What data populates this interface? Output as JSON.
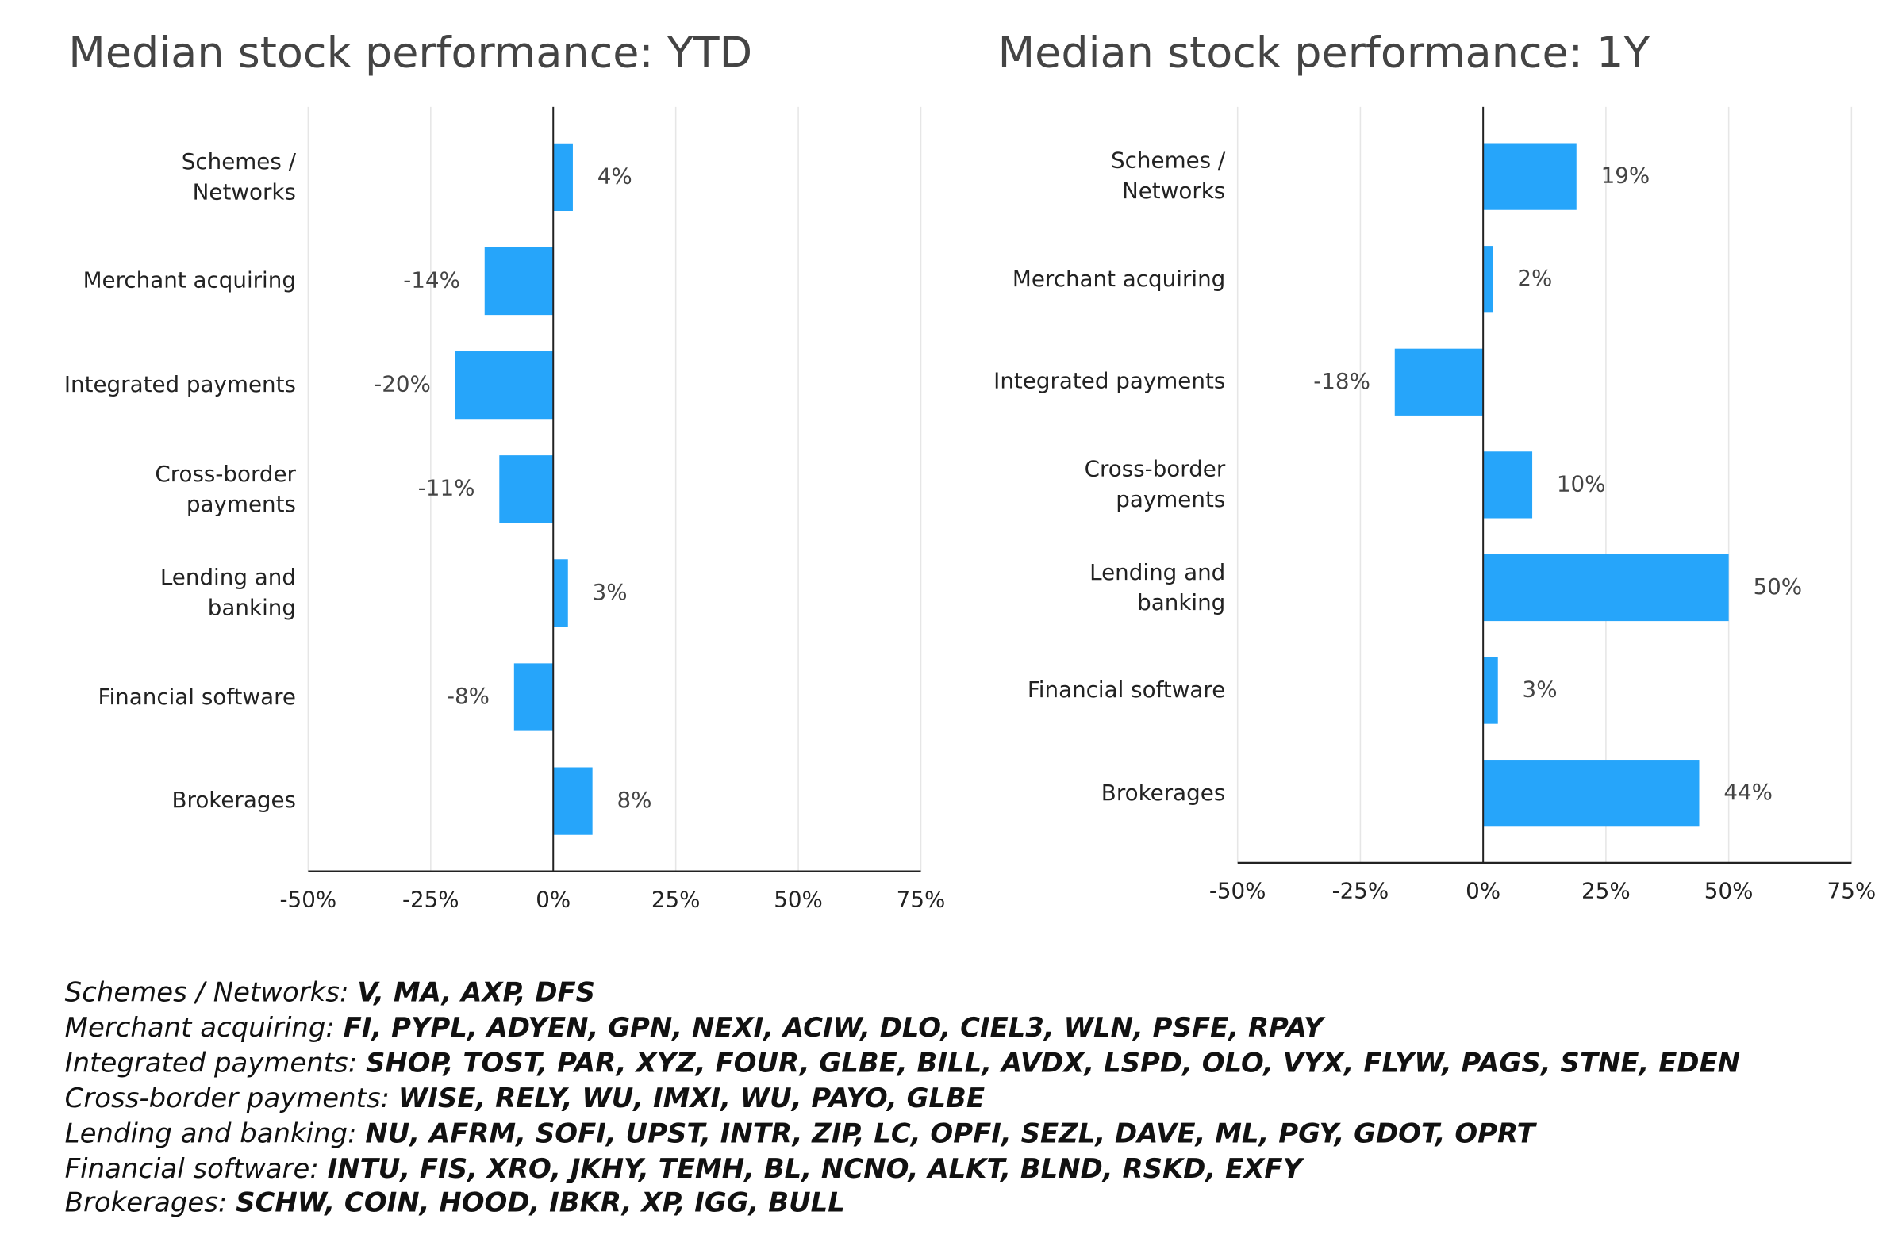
{
  "chart_data": [
    {
      "type": "bar",
      "orientation": "horizontal",
      "title": "Median stock performance: YTD",
      "categories": [
        "Schemes /\nNetworks",
        "Merchant acquiring",
        "Integrated payments",
        "Cross-border\npayments",
        "Lending and\nbanking",
        "Financial software",
        "Brokerages"
      ],
      "values": [
        4,
        -14,
        -20,
        -11,
        3,
        -8,
        8
      ],
      "value_labels": [
        "4%",
        "-14%",
        "-20%",
        "-11%",
        "3%",
        "-8%",
        "8%"
      ],
      "color": "#26a5fa",
      "xlim": [
        -50,
        75
      ],
      "xticks": [
        {
          "value": -50,
          "label": "-50%"
        },
        {
          "value": -25,
          "label": "-25%"
        },
        {
          "value": 0,
          "label": "0%"
        },
        {
          "value": 25,
          "label": "25%"
        },
        {
          "value": 50,
          "label": "50%"
        },
        {
          "value": 75,
          "label": "75%"
        }
      ],
      "grid": true
    },
    {
      "type": "bar",
      "orientation": "horizontal",
      "title": "Median stock performance: 1Y",
      "categories": [
        "Schemes /\nNetworks",
        "Merchant acquiring",
        "Integrated payments",
        "Cross-border\npayments",
        "Lending and\nbanking",
        "Financial software",
        "Brokerages"
      ],
      "values": [
        19,
        2,
        -18,
        10,
        50,
        3,
        44
      ],
      "value_labels": [
        "19%",
        "2%",
        "-18%",
        "10%",
        "50%",
        "3%",
        "44%"
      ],
      "color": "#26a5fa",
      "xlim": [
        -50,
        75
      ],
      "xticks": [
        {
          "value": -50,
          "label": "-50%"
        },
        {
          "value": -25,
          "label": "-25%"
        },
        {
          "value": 0,
          "label": "0%"
        },
        {
          "value": 25,
          "label": "25%"
        },
        {
          "value": 50,
          "label": "50%"
        },
        {
          "value": 75,
          "label": "75%"
        }
      ],
      "grid": true
    }
  ],
  "footnotes": [
    {
      "label": "Schemes / Networks:",
      "tickers": "V, MA, AXP, DFS"
    },
    {
      "label": "Merchant acquiring:",
      "tickers": "FI, PYPL, ADYEN, GPN, NEXI, ACIW, DLO, CIEL3, WLN, PSFE, RPAY"
    },
    {
      "label": "Integrated payments:",
      "tickers": "SHOP, TOST, PAR, XYZ, FOUR, GLBE, BILL, AVDX, LSPD, OLO, VYX, FLYW, PAGS, STNE, EDEN"
    },
    {
      "label": "Cross-border payments:",
      "tickers": "WISE, RELY, WU, IMXI, WU, PAYO, GLBE"
    },
    {
      "label": "Lending and banking:",
      "tickers": "NU, AFRM, SOFI, UPST, INTR, ZIP, LC, OPFI, SEZL, DAVE, ML, PGY, GDOT, OPRT"
    },
    {
      "label": "Financial software:",
      "tickers": "INTU, FIS, XRO, JKHY, TEMH, BL, NCNO, ALKT, BLND, RSKD, EXFY"
    },
    {
      "label": "Brokerages:",
      "tickers": "SCHW, COIN, HOOD, IBKR, XP, IGG, BULL"
    }
  ]
}
